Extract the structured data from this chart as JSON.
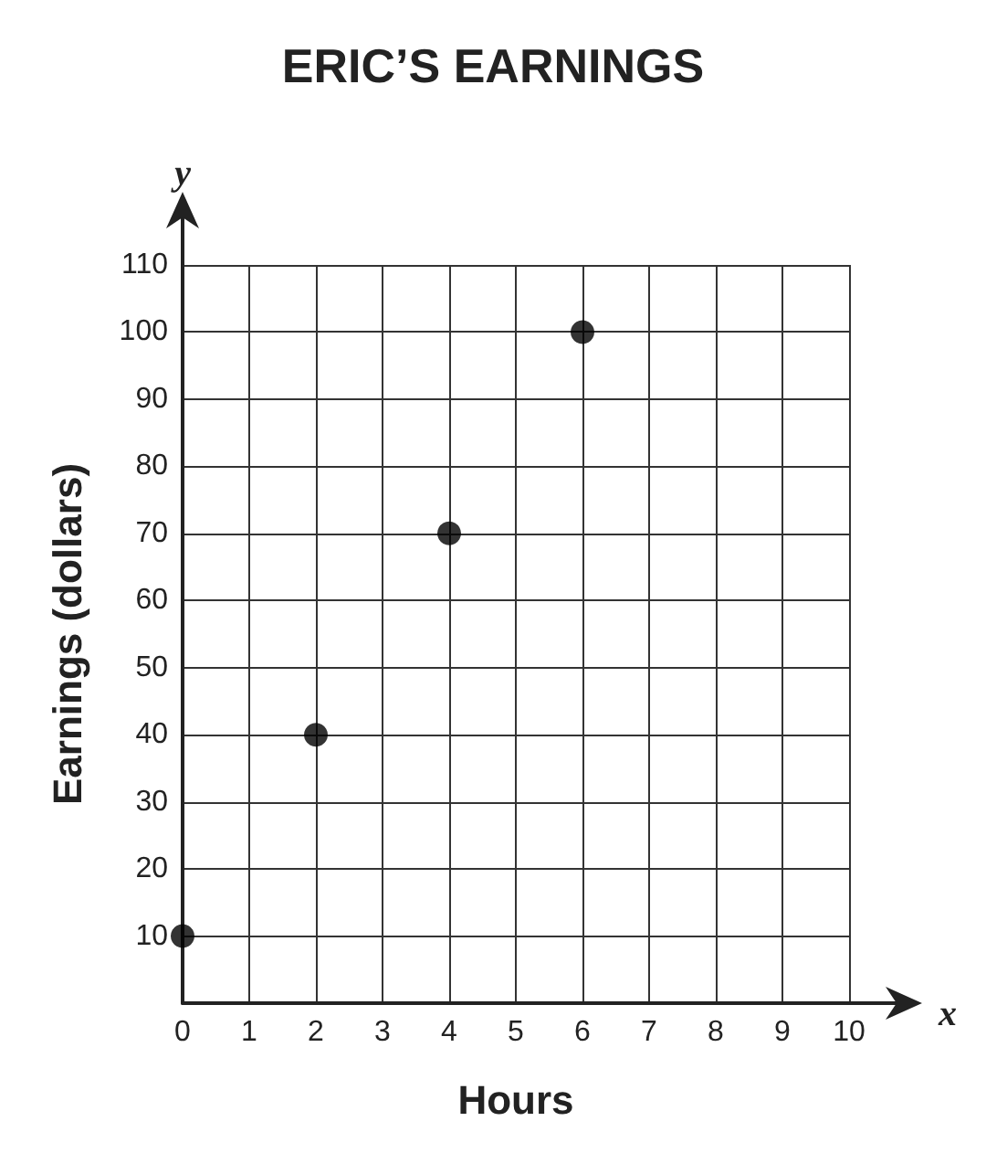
{
  "chart_data": {
    "type": "scatter",
    "title": "ERIC’S EARNINGS",
    "xlabel": "Hours",
    "ylabel": "Earnings (dollars)",
    "annotations": [
      "x",
      "y"
    ],
    "x": [
      0,
      2,
      4,
      6
    ],
    "series": [
      {
        "color": "#000000",
        "values": [
          10,
          40,
          70,
          100
        ]
      }
    ],
    "xlim": [
      0,
      10
    ],
    "xticks": [
      0,
      1,
      2,
      3,
      4,
      5,
      6,
      7,
      8,
      9,
      10
    ],
    "ylim": [
      0,
      110
    ],
    "yticks": [
      {
        "value": 0,
        "label": null
      },
      10,
      20,
      30,
      40,
      50,
      60,
      70,
      80,
      90,
      100,
      110
    ],
    "grid": true,
    "marker": "circle"
  }
}
